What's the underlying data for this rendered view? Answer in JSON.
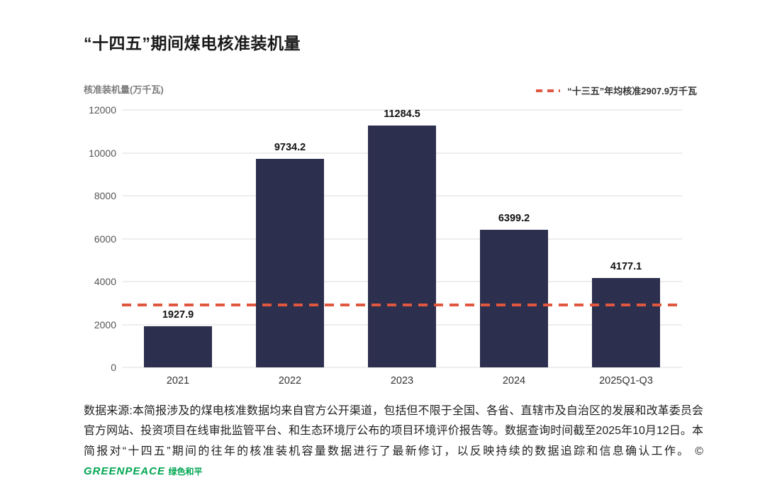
{
  "title": "“十四五”期间煤电核准装机量",
  "y_axis_unit": "核准装机量(万千瓦)",
  "legend": {
    "label": "“十三五”年均核准2907.9万千瓦",
    "line_color": "#e0573f",
    "line_style": "dashed"
  },
  "footer": {
    "text": "数据来源:本简报涉及的煤电核准数据均来自官方公开渠道，包括但不限于全国、各省、直辖市及自治区的发展和改革委员会官方网站、投资项目在线审批监管平台、和生态环境厅公布的项目环境评价报告等。数据查询时间截至2025年10月12日。本简报对“十四五”期间的往年的核准装机容量数据进行了最新修订，以反映持续的数据追踪和信息确认工作。",
    "copyright": "©",
    "logo_text": "GREENPEACE",
    "logo_cn": "绿色和平",
    "logo_color": "#00a651"
  },
  "chart_data": {
    "type": "bar",
    "title": "“十四五”期间煤电核准装机量",
    "categories": [
      "2021",
      "2022",
      "2023",
      "2024",
      "2025Q1-Q3"
    ],
    "values": [
      1927.9,
      9734.2,
      11284.5,
      6399.2,
      4177.1
    ],
    "xlabel": "",
    "ylabel": "核准装机量(万千瓦)",
    "ylim": [
      0,
      12000
    ],
    "yticks": [
      0,
      2000,
      4000,
      6000,
      8000,
      10000,
      12000
    ],
    "grid": true,
    "legend_position": "top-right",
    "bar_color": "#2c2f4d",
    "reference_line": {
      "value": 2907.9,
      "label": "“十三五”年均核准2907.9万千瓦",
      "color": "#e0573f",
      "style": "dashed"
    }
  }
}
